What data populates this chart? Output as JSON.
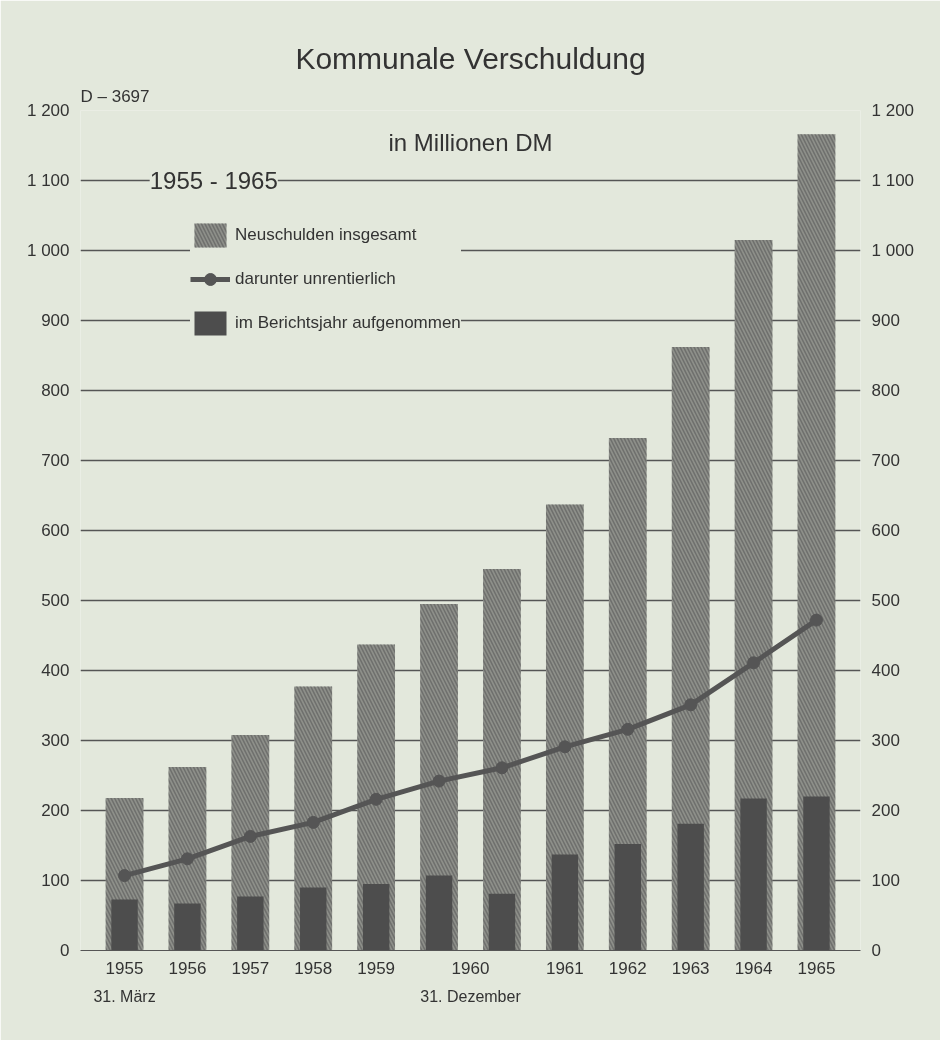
{
  "chart_data": {
    "type": "bar",
    "title": "Kommunale Verschuldung",
    "subtitle": "in Millionen DM",
    "annotations": [
      "D – 3697",
      "1955 - 1965",
      "1960",
      "31. März",
      "31. Dezember"
    ],
    "categories": [
      "1955",
      "1956",
      "1957",
      "1958",
      "1959",
      null,
      null,
      "1961",
      "1962",
      "1963",
      "1964",
      "1965"
    ],
    "series": [
      {
        "name": "Neuschulden insgesamt",
        "color": "#8e908a",
        "values": [
          218,
          262,
          308,
          377,
          437,
          495,
          545,
          637,
          732,
          862,
          1015,
          1166
        ]
      },
      {
        "name": "darunter unrentierlich",
        "type": "line",
        "color": "#555555",
        "marker": "circle",
        "values": [
          107,
          131,
          163,
          183,
          216,
          242,
          261,
          291,
          316,
          351,
          411,
          472
        ]
      },
      {
        "name": "im Berichtsjahr aufgenommen",
        "color": "#4d4d4d",
        "values": [
          73,
          67,
          77,
          90,
          95,
          107,
          81,
          137,
          152,
          181,
          217,
          220
        ]
      }
    ],
    "ylim": [
      0,
      1200
    ],
    "yticks": [
      0,
      100,
      200,
      300,
      400,
      500,
      600,
      700,
      800,
      900,
      {
        "value": 1000,
        "label": "1 000"
      },
      {
        "value": 1100,
        "label": "1 100"
      },
      {
        "value": 1200,
        "label": "1 200"
      }
    ],
    "y2lim": [
      0,
      1200
    ],
    "y2ticks": [
      0,
      100,
      200,
      300,
      400,
      500,
      600,
      700,
      800,
      900,
      {
        "value": 1000,
        "label": "1 000"
      },
      {
        "value": 1100,
        "label": "1 100"
      },
      {
        "value": 1200,
        "label": "1 200"
      }
    ],
    "grid": "y",
    "legend": "top left"
  }
}
